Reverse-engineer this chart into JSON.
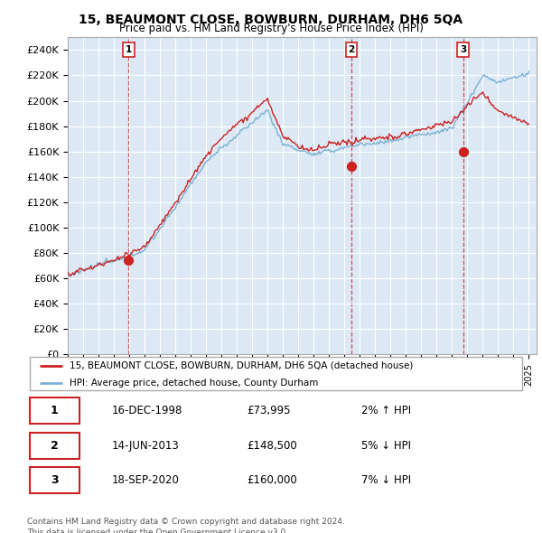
{
  "title_line1": "15, BEAUMONT CLOSE, BOWBURN, DURHAM, DH6 5QA",
  "title_line2": "Price paid vs. HM Land Registry's House Price Index (HPI)",
  "xlim_start": 1995.0,
  "xlim_end": 2025.5,
  "ylim_min": 0,
  "ylim_max": 250000,
  "yticks": [
    0,
    20000,
    40000,
    60000,
    80000,
    100000,
    120000,
    140000,
    160000,
    180000,
    200000,
    220000,
    240000
  ],
  "ytick_labels": [
    "£0",
    "£20K",
    "£40K",
    "£60K",
    "£80K",
    "£100K",
    "£120K",
    "£140K",
    "£160K",
    "£180K",
    "£200K",
    "£220K",
    "£240K"
  ],
  "sale_dates": [
    1998.958,
    2013.448,
    2020.718
  ],
  "sale_prices": [
    73995,
    148500,
    160000
  ],
  "sale_numbers": [
    "1",
    "2",
    "3"
  ],
  "legend_line1": "15, BEAUMONT CLOSE, BOWBURN, DURHAM, DH6 5QA (detached house)",
  "legend_line2": "HPI: Average price, detached house, County Durham",
  "table_rows": [
    [
      "1",
      "16-DEC-1998",
      "£73,995",
      "2% ↑ HPI"
    ],
    [
      "2",
      "14-JUN-2013",
      "£148,500",
      "5% ↓ HPI"
    ],
    [
      "3",
      "18-SEP-2020",
      "£160,000",
      "7% ↓ HPI"
    ]
  ],
  "footer": "Contains HM Land Registry data © Crown copyright and database right 2024.\nThis data is licensed under the Open Government Licence v3.0.",
  "hpi_color": "#7ab0d4",
  "sale_color": "#cc2222",
  "plot_bg_color": "#dce9f5",
  "grid_color": "#ffffff"
}
